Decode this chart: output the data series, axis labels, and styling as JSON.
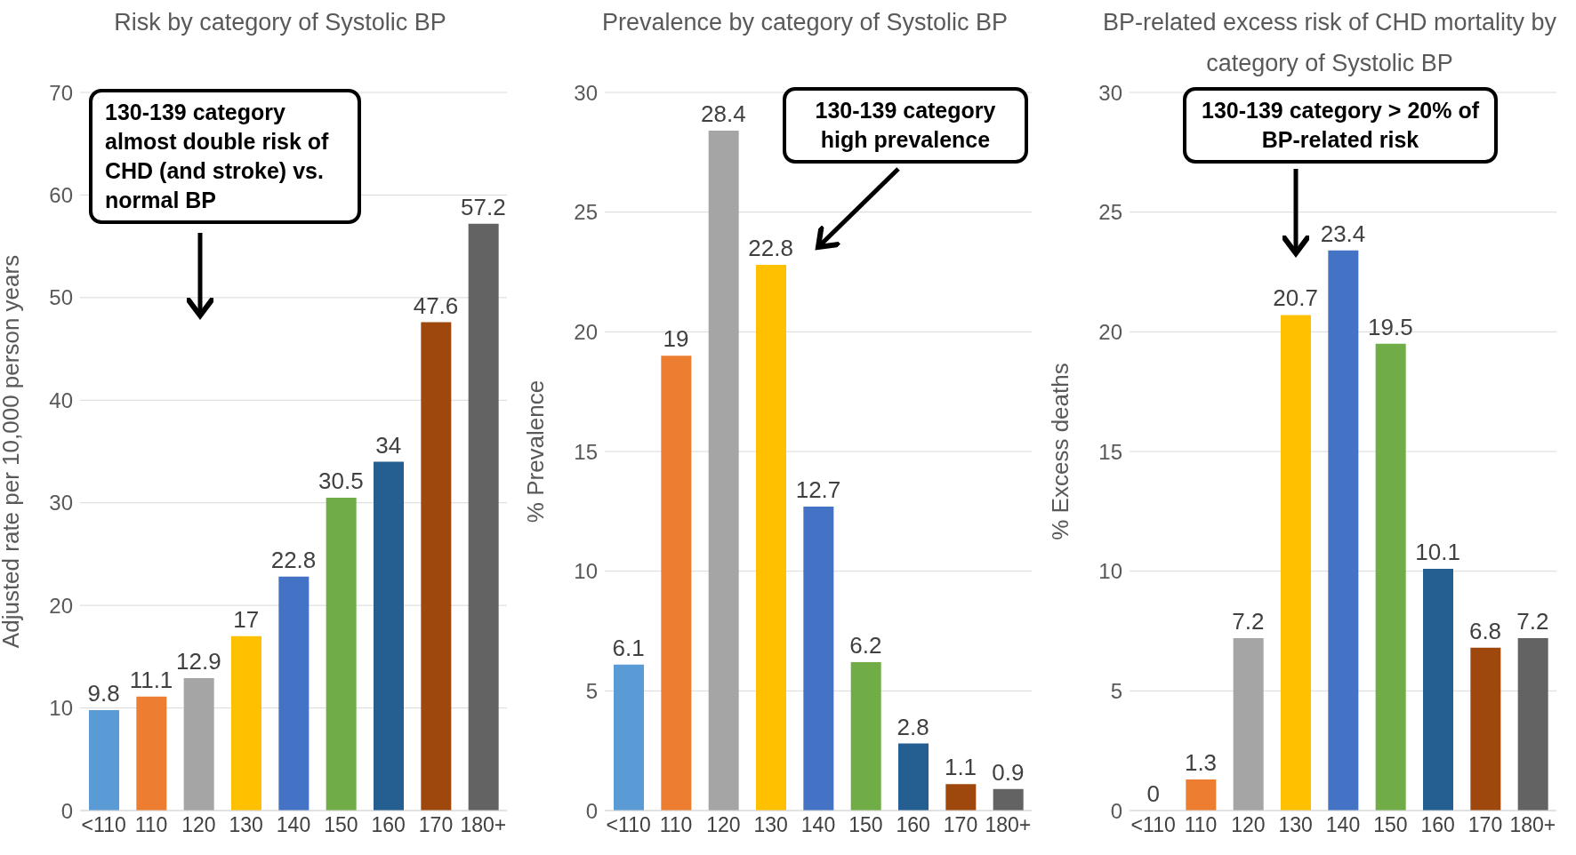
{
  "chart_data": [
    {
      "type": "bar",
      "title": "Risk by category of Systolic BP",
      "ylabel": "Adjusted rate per 10,000 person years",
      "categories": [
        "<110",
        "110",
        "120",
        "130",
        "140",
        "150",
        "160",
        "170",
        "180+"
      ],
      "values": [
        9.8,
        11.1,
        12.9,
        17,
        22.8,
        30.5,
        34,
        47.6,
        57.2
      ],
      "colors": [
        "#5b9bd5",
        "#ed7d31",
        "#a5a5a5",
        "#ffc000",
        "#4472c4",
        "#70ad47",
        "#255e91",
        "#9e480e",
        "#636363"
      ],
      "ylim": [
        0,
        70
      ],
      "yticks": [
        0,
        10,
        20,
        30,
        40,
        50,
        60,
        70
      ],
      "grid": "y",
      "data_labels": true,
      "annotations": [
        "130-139 category almost double risk of CHD (and stroke) vs. normal BP"
      ]
    },
    {
      "type": "bar",
      "title": "Prevalence by category of Systolic BP",
      "ylabel": "% Prevalence",
      "categories": [
        "<110",
        "110",
        "120",
        "130",
        "140",
        "150",
        "160",
        "170",
        "180+"
      ],
      "values": [
        6.1,
        19,
        28.4,
        22.8,
        12.7,
        6.2,
        2.8,
        1.1,
        0.9
      ],
      "colors": [
        "#5b9bd5",
        "#ed7d31",
        "#a5a5a5",
        "#ffc000",
        "#4472c4",
        "#70ad47",
        "#255e91",
        "#9e480e",
        "#636363"
      ],
      "ylim": [
        0,
        30
      ],
      "yticks": [
        0,
        5,
        10,
        15,
        20,
        25,
        30
      ],
      "grid": "y",
      "data_labels": true,
      "annotations": [
        "130-139 category high prevalence"
      ]
    },
    {
      "type": "bar",
      "title": "BP-related excess risk of CHD mortality by category of Systolic BP",
      "ylabel": "% Excess deaths",
      "categories": [
        "<110",
        "110",
        "120",
        "130",
        "140",
        "150",
        "160",
        "170",
        "180+"
      ],
      "values": [
        0,
        1.3,
        7.2,
        20.7,
        23.4,
        19.5,
        10.1,
        6.8,
        7.2
      ],
      "colors": [
        "#5b9bd5",
        "#ed7d31",
        "#a5a5a5",
        "#ffc000",
        "#4472c4",
        "#70ad47",
        "#255e91",
        "#9e480e",
        "#636363"
      ],
      "ylim": [
        0,
        30
      ],
      "yticks": [
        0,
        5,
        10,
        15,
        20,
        25,
        30
      ],
      "grid": "y",
      "data_labels": true,
      "annotations": [
        "130-139 category > 20% of BP-related risk"
      ]
    }
  ]
}
